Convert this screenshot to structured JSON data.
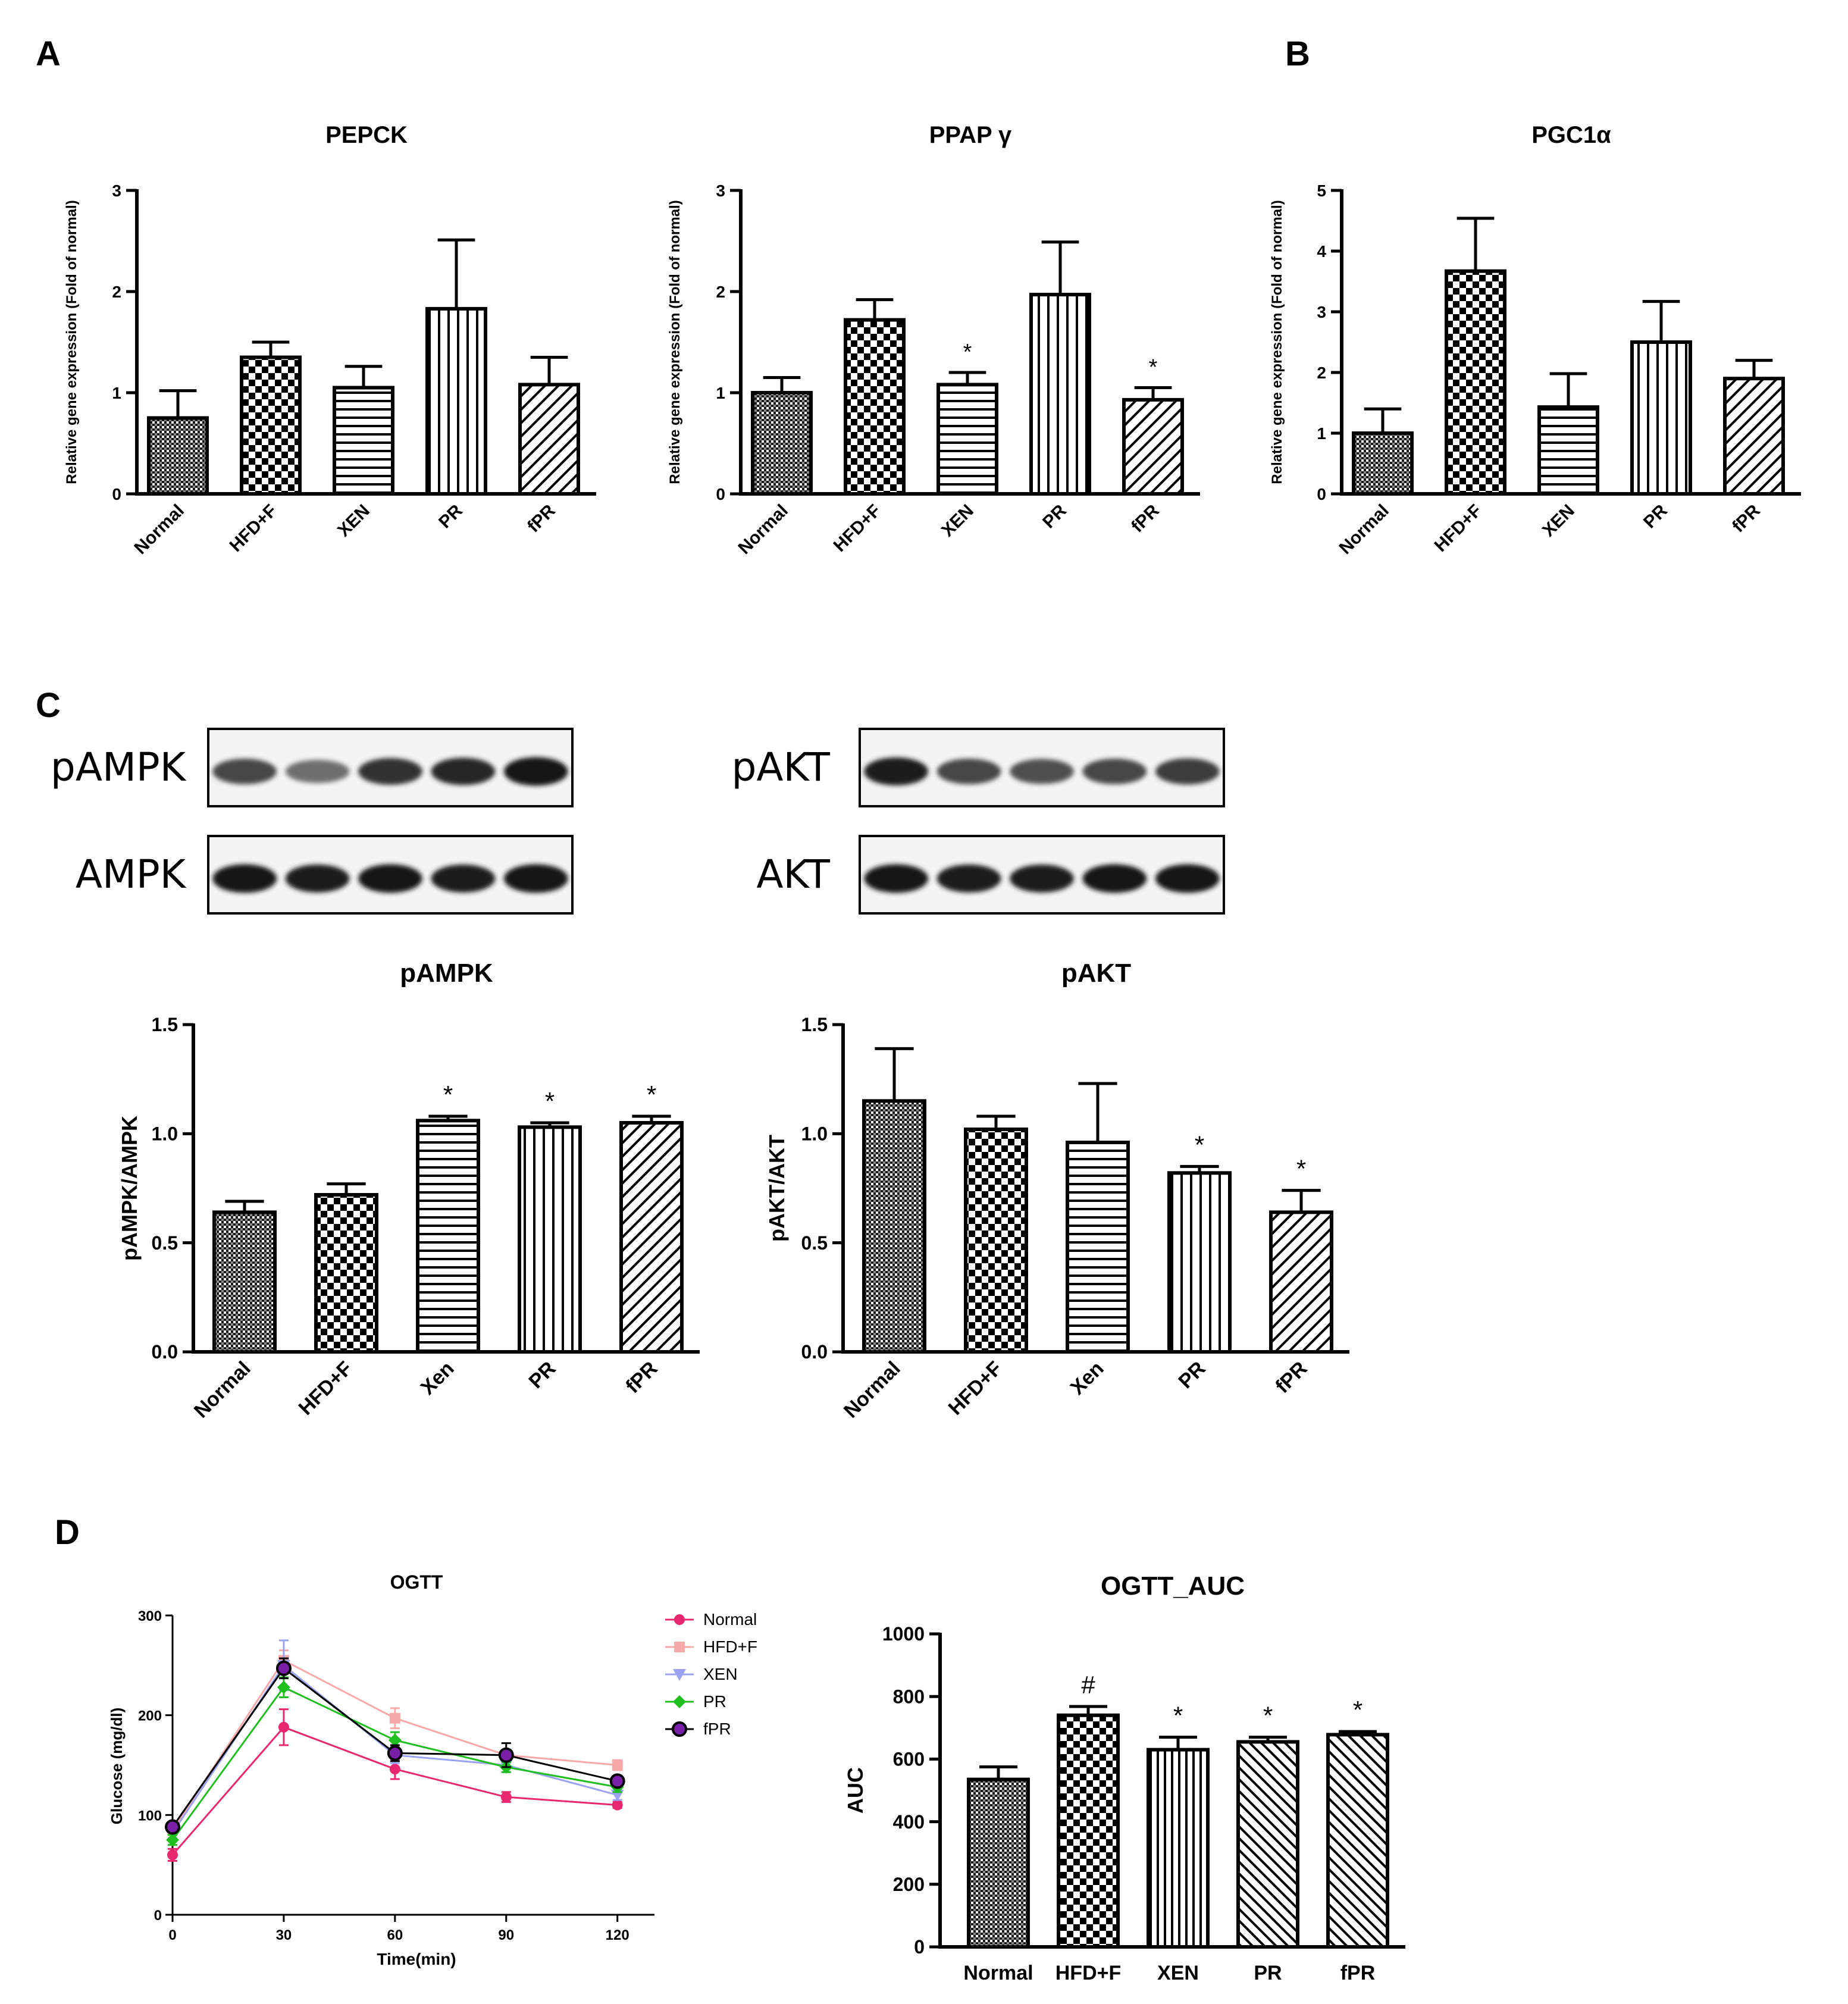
{
  "panel_letters": [
    "A",
    "B",
    "C",
    "D"
  ],
  "western_blots": [
    {
      "label": "pAMPK",
      "intensities": [
        0.75,
        0.55,
        0.85,
        0.9,
        1.0
      ],
      "blur": 1.0
    },
    {
      "label": "AMPK",
      "intensities": [
        1.0,
        0.95,
        1.0,
        0.95,
        1.0
      ],
      "blur": 0.5
    },
    {
      "label": "pAKT",
      "intensities": [
        0.95,
        0.75,
        0.7,
        0.75,
        0.8
      ],
      "blur": 0.8
    },
    {
      "label": "AKT",
      "intensities": [
        1.0,
        0.95,
        0.95,
        1.0,
        1.0
      ],
      "blur": 0.5
    }
  ],
  "chart_data": [
    {
      "id": "pepck",
      "type": "bar",
      "panel": "A",
      "title": "PEPCK",
      "ylabel": "Relative gene expression (Fold of normal)",
      "categories": [
        "Normal",
        "HFD+F",
        "XEN",
        "PR",
        "fPR"
      ],
      "values": [
        0.75,
        1.35,
        1.05,
        1.83,
        1.08
      ],
      "errors": [
        0.27,
        0.15,
        0.21,
        0.68,
        0.27
      ],
      "annotations": [
        "",
        "",
        "",
        "",
        ""
      ],
      "ylim": [
        0,
        3
      ],
      "yticks": [
        "0",
        "1",
        "2",
        "3"
      ],
      "patterns": [
        "dense",
        "checker",
        "hlines",
        "vlines",
        "diag"
      ]
    },
    {
      "id": "ppap",
      "type": "bar",
      "panel": "A",
      "title": "PPAP γ",
      "ylabel": "Relative gene expression (Fold of normal)",
      "categories": [
        "Normal",
        "HFD+F",
        "XEN",
        "PR",
        "fPR"
      ],
      "values": [
        1.0,
        1.72,
        1.08,
        1.97,
        0.93
      ],
      "errors": [
        0.15,
        0.2,
        0.12,
        0.52,
        0.12
      ],
      "annotations": [
        "",
        "",
        "*",
        "",
        "*"
      ],
      "ylim": [
        0,
        3
      ],
      "yticks": [
        "0",
        "1",
        "2",
        "3"
      ],
      "patterns": [
        "dense",
        "checker",
        "hlines",
        "vlines",
        "diag"
      ]
    },
    {
      "id": "pgc1a",
      "type": "bar",
      "panel": "B",
      "title": "PGC1α",
      "ylabel": "Relative gene expression (Fold of normal)",
      "categories": [
        "Normal",
        "HFD+F",
        "XEN",
        "PR",
        "fPR"
      ],
      "values": [
        1.0,
        3.67,
        1.43,
        2.5,
        1.9
      ],
      "errors": [
        0.4,
        0.87,
        0.55,
        0.67,
        0.3
      ],
      "annotations": [
        "",
        "",
        "",
        "",
        ""
      ],
      "ylim": [
        0,
        5
      ],
      "yticks": [
        "0",
        "1",
        "2",
        "3",
        "4",
        "5"
      ],
      "patterns": [
        "dense",
        "checker",
        "hlines",
        "vlines",
        "diag"
      ]
    },
    {
      "id": "pampk",
      "type": "bar",
      "panel": "C",
      "title": "pAMPK",
      "ylabel": "pAMPK/AMPK",
      "categories": [
        "Normal",
        "HFD+F",
        "Xen",
        "PR",
        "fPR"
      ],
      "values": [
        0.64,
        0.72,
        1.06,
        1.03,
        1.05
      ],
      "errors": [
        0.05,
        0.05,
        0.02,
        0.02,
        0.03
      ],
      "annotations": [
        "",
        "",
        "*",
        "*",
        "*"
      ],
      "ylim": [
        0,
        1.5
      ],
      "yticks": [
        "0.0",
        "0.5",
        "1.0",
        "1.5"
      ],
      "patterns": [
        "dense",
        "checker",
        "hlines",
        "vlines",
        "diag"
      ]
    },
    {
      "id": "pakt",
      "type": "bar",
      "panel": "C",
      "title": "pAKT",
      "ylabel": "pAKT/AKT",
      "categories": [
        "Normal",
        "HFD+F",
        "Xen",
        "PR",
        "fPR"
      ],
      "values": [
        1.15,
        1.02,
        0.96,
        0.82,
        0.64
      ],
      "errors": [
        0.24,
        0.06,
        0.27,
        0.03,
        0.1
      ],
      "annotations": [
        "",
        "",
        "",
        "*",
        "*"
      ],
      "ylim": [
        0,
        1.5
      ],
      "yticks": [
        "0.0",
        "0.5",
        "1.0",
        "1.5"
      ],
      "patterns": [
        "dense",
        "checker",
        "hlines",
        "vlines",
        "diag"
      ]
    },
    {
      "id": "ogtt",
      "type": "line",
      "panel": "D",
      "title": "OGTT",
      "xlabel": "Time(min)",
      "ylabel": "Glucose (mg/dl)",
      "x": [
        0,
        30,
        60,
        90,
        120
      ],
      "xlim": [
        0,
        130
      ],
      "ylim": [
        0,
        300
      ],
      "xticks": [
        "0",
        "30",
        "60",
        "90",
        "120"
      ],
      "yticks": [
        "0",
        "100",
        "200",
        "300"
      ],
      "series": [
        {
          "name": "Normal",
          "color": "#e8286e",
          "marker": "circle",
          "values": [
            60,
            188,
            146,
            118,
            110
          ],
          "errors": [
            6,
            18,
            10,
            5,
            3
          ]
        },
        {
          "name": "HFD+F",
          "color": "#f7a8a8",
          "marker": "square",
          "values": [
            85,
            255,
            197,
            160,
            150
          ],
          "errors": [
            5,
            10,
            10,
            5,
            5
          ]
        },
        {
          "name": "XEN",
          "color": "#9aa2f2",
          "marker": "tri-down",
          "values": [
            82,
            250,
            160,
            150,
            120
          ],
          "errors": [
            5,
            25,
            8,
            7,
            5
          ]
        },
        {
          "name": "PR",
          "color": "#1fbf1f",
          "marker": "diamond",
          "values": [
            75,
            228,
            175,
            148,
            128
          ],
          "errors": [
            5,
            10,
            8,
            5,
            5
          ]
        },
        {
          "name": "fPR",
          "color": "#000000",
          "fill": "#7a1fa8",
          "marker": "circle-outline",
          "values": [
            88,
            247,
            162,
            160,
            134
          ],
          "errors": [
            5,
            10,
            8,
            12,
            5
          ]
        }
      ]
    },
    {
      "id": "ogtt_auc",
      "type": "bar",
      "panel": "D",
      "title": "OGTT_AUC",
      "ylabel": "AUC",
      "categories": [
        "Normal",
        "HFD+F",
        "XEN",
        "PR",
        "fPR"
      ],
      "values": [
        535,
        740,
        630,
        655,
        678
      ],
      "errors": [
        40,
        28,
        40,
        15,
        10
      ],
      "annotations": [
        "",
        "#",
        "*",
        "*",
        "*"
      ],
      "ylim": [
        0,
        1000
      ],
      "yticks": [
        "0",
        "200",
        "400",
        "600",
        "800",
        "1000"
      ],
      "patterns": [
        "dense",
        "checker",
        "vlines2",
        "diag2",
        "diag2"
      ]
    }
  ]
}
